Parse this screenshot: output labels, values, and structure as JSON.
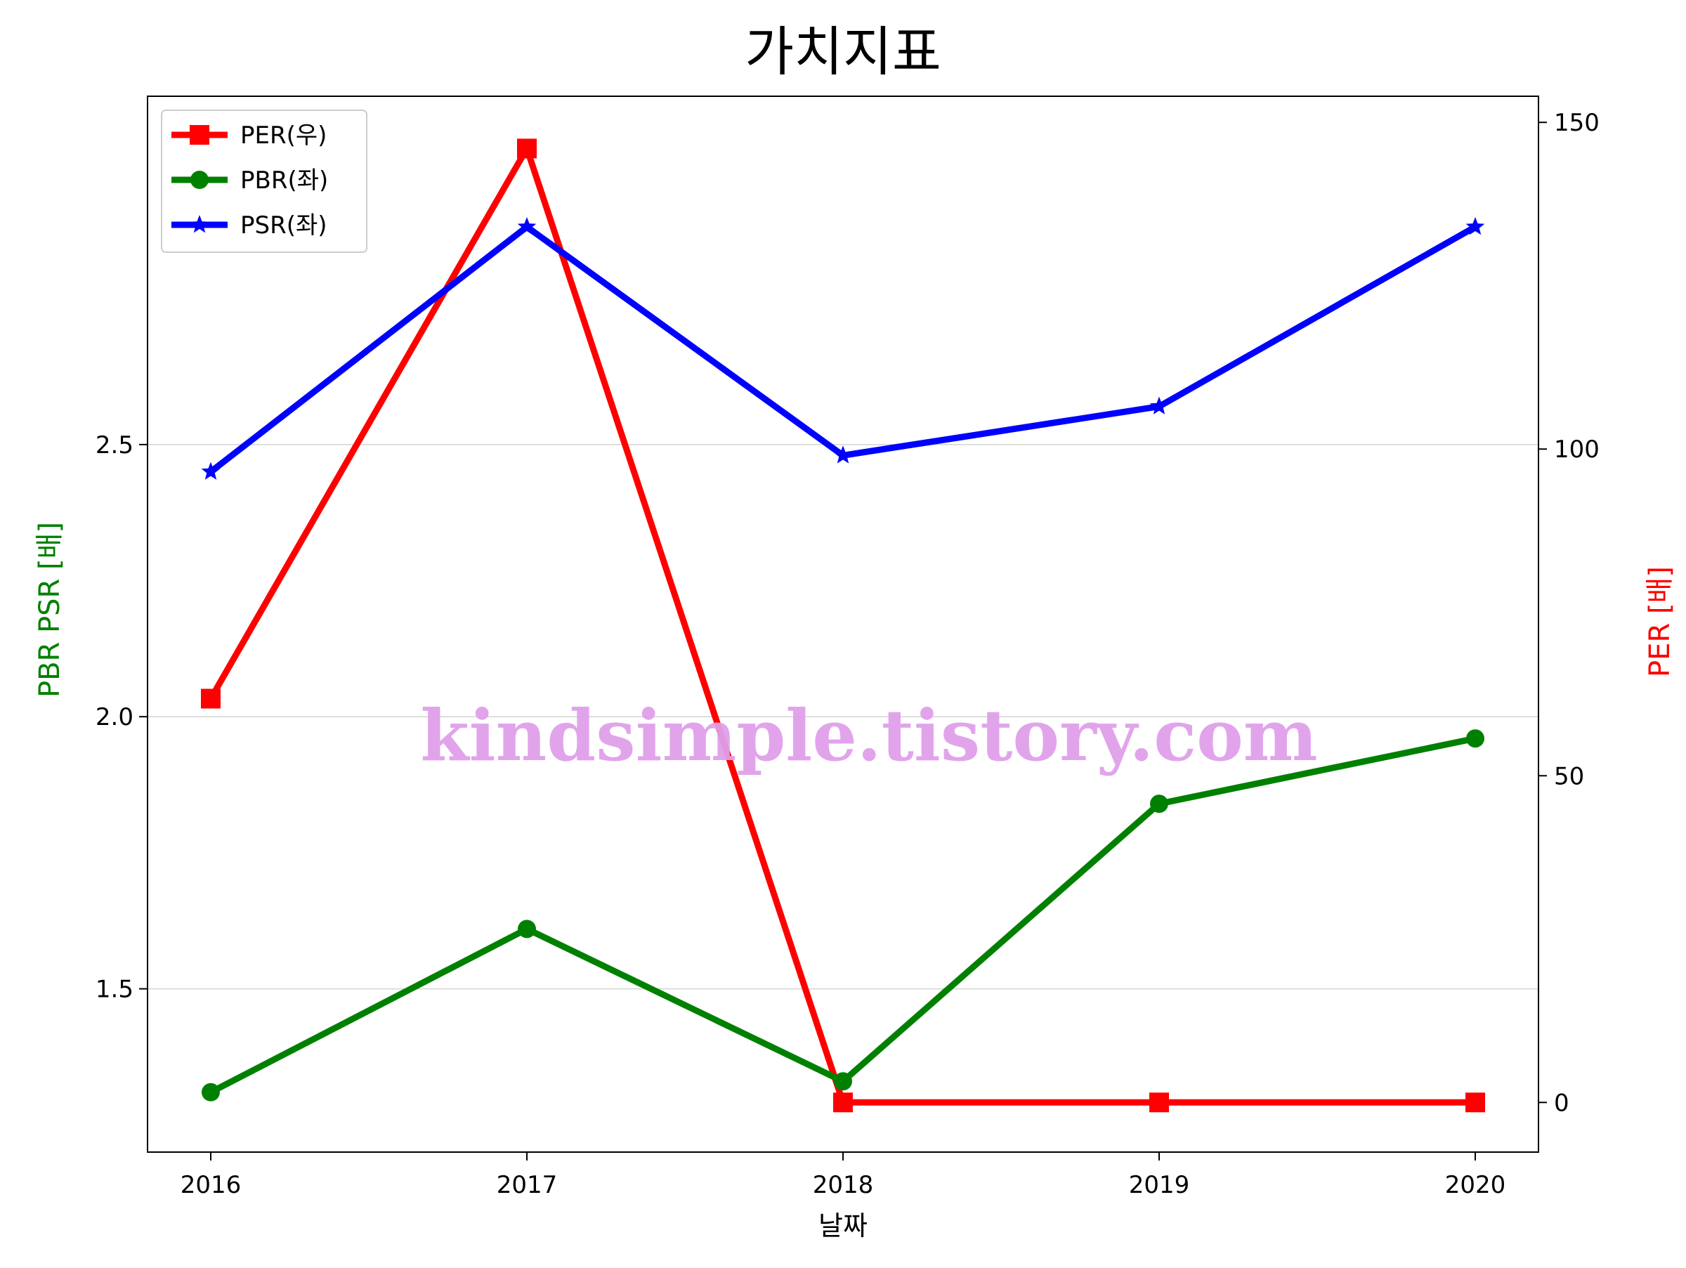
{
  "chart_data": {
    "type": "line",
    "title": "가치지표",
    "xlabel": "날짜",
    "ylabel_left": "PBR PSR [배]",
    "ylabel_right": "PER [배]",
    "categories": [
      "2016",
      "2017",
      "2018",
      "2019",
      "2020"
    ],
    "left_axis": {
      "ylim": [
        1.2,
        3.14
      ],
      "ticks": [
        1.5,
        2.0,
        2.5
      ],
      "tick_labels": [
        "1.5",
        "2.0",
        "2.5"
      ],
      "color": "#008000"
    },
    "right_axis": {
      "ylim": [
        -7.6,
        154.0
      ],
      "ticks": [
        0,
        50,
        100,
        150
      ],
      "tick_labels": [
        "0",
        "50",
        "100",
        "150"
      ],
      "color": "#ff0000"
    },
    "grid": "horizontal (left axis)",
    "legend_position": "top-left",
    "series": [
      {
        "name": "PER(우)",
        "axis": "right",
        "color": "#ff0000",
        "marker": "square",
        "values": [
          61.8,
          146.0,
          0.0,
          0.0,
          0.0
        ]
      },
      {
        "name": "PBR(좌)",
        "axis": "left",
        "color": "#008000",
        "marker": "circle",
        "values": [
          1.31,
          1.61,
          1.33,
          1.84,
          1.96
        ]
      },
      {
        "name": "PSR(좌)",
        "axis": "left",
        "color": "#0000ff",
        "marker": "star",
        "values": [
          2.45,
          2.9,
          2.48,
          2.57,
          2.9
        ]
      }
    ],
    "watermark": "kindsimple.tistory.com"
  }
}
